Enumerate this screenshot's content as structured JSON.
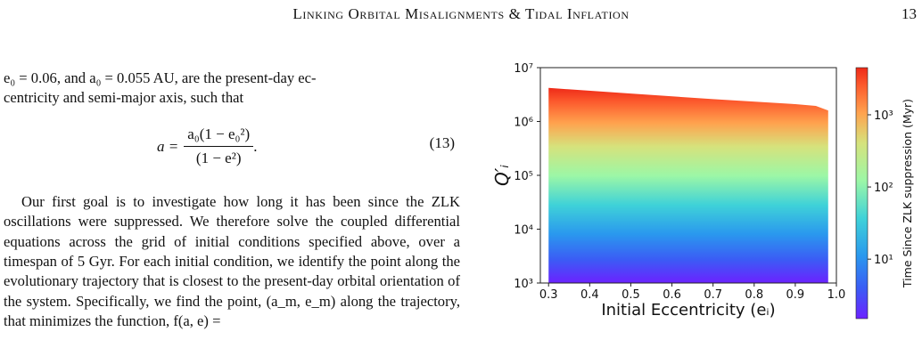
{
  "header": {
    "running_title": "Linking Orbital Misalignments & Tidal Inflation",
    "page_number": "13"
  },
  "body": {
    "para1_lines": [
      "e₀ = 0.06, and a₀ = 0.055 AU, are the present-day ec-",
      "centricity and semi-major axis, such that"
    ],
    "equation": {
      "lhs": "a =",
      "numerator": "a₀(1 − e₀²)",
      "denominator": "(1 − e²)",
      "trailing": ".",
      "number": "(13)"
    },
    "para2": "Our first goal is to investigate how long it has been since the ZLK oscillations were suppressed. We therefore solve the coupled differential equations across the grid of initial conditions specified above, over a timespan of 5 Gyr. For each initial condition, we identify the point along the evolutionary trajectory that is closest to the present-day orbital orientation of the system. Specifically, we find the point, (a_m, e_m) along the trajectory, that minimizes the function, f(a, e) ="
  },
  "chart_data": {
    "type": "heatmap",
    "xlabel": "Initial Eccentricity (eᵢ)",
    "ylabel": "Q′ᵢ",
    "x_ticks": [
      "0.3",
      "0.4",
      "0.5",
      "0.6",
      "0.7",
      "0.8",
      "0.9",
      "1.0"
    ],
    "xlim": [
      0.28,
      1.0
    ],
    "y_scale": "log",
    "y_ticks": [
      "10³",
      "10⁴",
      "10⁵",
      "10⁶",
      "10⁷"
    ],
    "ylim": [
      1000,
      10000000
    ],
    "region": {
      "x": [
        0.3,
        0.98
      ],
      "y_lower": 1000,
      "y_upper_at_x": [
        [
          0.3,
          4200000
        ],
        [
          0.5,
          3300000
        ],
        [
          0.7,
          2600000
        ],
        [
          0.9,
          2100000
        ],
        [
          0.95,
          1950000
        ],
        [
          0.98,
          1600000
        ]
      ]
    },
    "colorbar": {
      "label": "Time Since ZLK suppression (Myr)",
      "scale": "log",
      "ticks": [
        "10¹",
        "10²",
        "10³"
      ],
      "colormap": "rainbow",
      "range_approx": [
        1.5,
        4500
      ]
    },
    "grid": false
  }
}
